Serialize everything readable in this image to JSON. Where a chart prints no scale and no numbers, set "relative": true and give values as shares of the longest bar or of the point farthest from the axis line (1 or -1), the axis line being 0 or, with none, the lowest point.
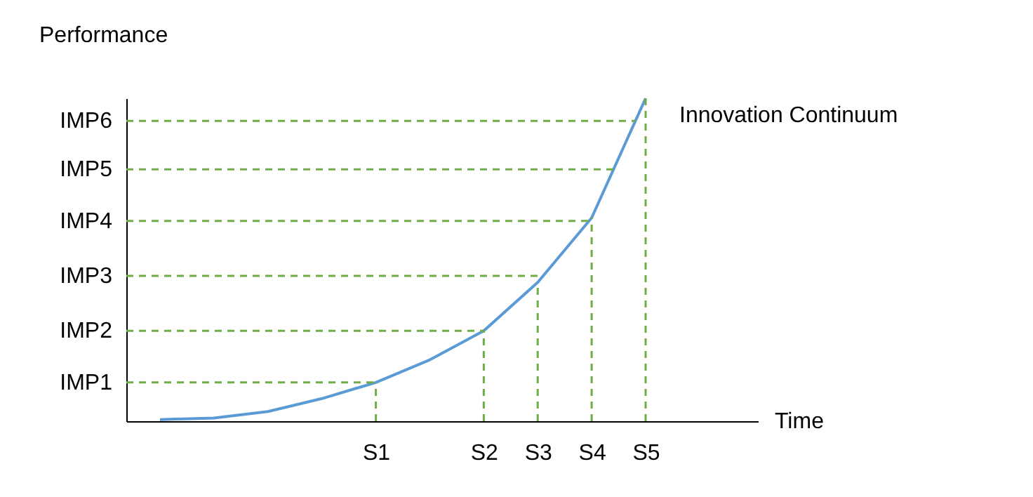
{
  "chart_data": {
    "type": "line",
    "relative": true,
    "annotations": [
      "Time"
    ],
    "ylabel": "Performance",
    "categories": [
      null,
      null,
      null,
      null,
      "S1",
      null,
      "S2",
      "S3",
      "S4",
      "S5"
    ],
    "series": [
      {
        "name": "Innovation Continuum",
        "color": "#5b9bd5",
        "values": [
          0.005,
          0.01,
          0.03,
          0.07,
          0.12,
          0.19,
          0.28,
          0.43,
          0.63,
          1
        ]
      }
    ],
    "ref_lines": [
      {
        "axis": "y",
        "value": 0.12,
        "label": "IMP1",
        "color": "#70ad47",
        "line_style": "dashed"
      },
      {
        "axis": "y",
        "value": 0.28,
        "label": "IMP2",
        "color": "#70ad47",
        "line_style": "dashed"
      },
      {
        "axis": "y",
        "value": 0.45,
        "label": "IMP3",
        "color": "#70ad47",
        "line_style": "dashed"
      },
      {
        "axis": "y",
        "value": 0.62,
        "label": "IMP4",
        "color": "#70ad47",
        "line_style": "dashed"
      },
      {
        "axis": "y",
        "value": 0.78,
        "label": "IMP5",
        "color": "#70ad47",
        "line_style": "dashed"
      },
      {
        "axis": "y",
        "value": 0.93,
        "label": "IMP6",
        "color": "#70ad47",
        "line_style": "dashed"
      },
      {
        "axis": "x",
        "value": "S1",
        "color": "#70ad47",
        "line_style": "dashed"
      },
      {
        "axis": "x",
        "value": "S2",
        "color": "#70ad47",
        "line_style": "dashed"
      },
      {
        "axis": "x",
        "value": "S3",
        "color": "#70ad47",
        "line_style": "dashed"
      },
      {
        "axis": "x",
        "value": "S4",
        "color": "#70ad47",
        "line_style": "dashed"
      },
      {
        "axis": "x",
        "value": "S5",
        "color": "#70ad47",
        "line_style": "dashed"
      }
    ]
  }
}
